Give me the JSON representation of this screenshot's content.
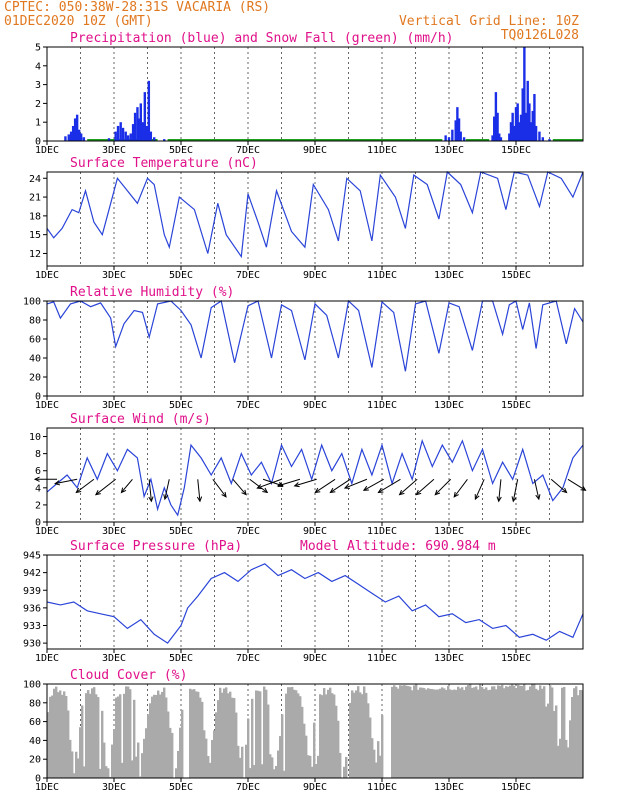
{
  "header": {
    "line1_left": "CPTEC:   050:38W-28:31S   VACARIA (RS)",
    "line2_left": "01DEC2020 10Z (GMT)",
    "line2_right": "Vertical Grid Line: 10Z",
    "line3_right": "TQ0126L028"
  },
  "colors": {
    "header": "#e07820",
    "title": "#e0108a",
    "precip": "#1a2ee8",
    "snow": "#20a020",
    "line": "#2a44d8",
    "cloud": "#aaaaaa"
  },
  "x_axis": {
    "days": 16,
    "tick_labels": [
      "1DEC",
      "3DEC",
      "5DEC",
      "7DEC",
      "9DEC",
      "11DEC",
      "13DEC",
      "15DEC"
    ],
    "tick_days": [
      0,
      2,
      4,
      6,
      8,
      10,
      12,
      14
    ]
  },
  "chart_data": [
    {
      "type": "bar",
      "title": "Precipitation (blue) and Snow Fall (green) (mm/h)",
      "ylim": [
        0,
        5
      ],
      "yticks": [
        0,
        1,
        2,
        3,
        4,
        5
      ],
      "precip_events": [
        [
          0.55,
          0.25
        ],
        [
          0.65,
          0.35
        ],
        [
          0.72,
          0.5
        ],
        [
          0.78,
          0.8
        ],
        [
          0.84,
          1.2
        ],
        [
          0.9,
          1.4
        ],
        [
          0.96,
          0.6
        ],
        [
          1.02,
          0.4
        ],
        [
          1.1,
          0.2
        ],
        [
          1.85,
          0.15
        ],
        [
          2.05,
          0.5
        ],
        [
          2.12,
          0.8
        ],
        [
          2.2,
          1.0
        ],
        [
          2.27,
          0.7
        ],
        [
          2.35,
          0.5
        ],
        [
          2.42,
          0.3
        ],
        [
          2.5,
          0.4
        ],
        [
          2.57,
          0.9
        ],
        [
          2.63,
          1.5
        ],
        [
          2.7,
          1.8
        ],
        [
          2.75,
          1.2
        ],
        [
          2.8,
          2.0
        ],
        [
          2.86,
          1.0
        ],
        [
          2.92,
          2.6
        ],
        [
          2.98,
          0.8
        ],
        [
          3.04,
          3.2
        ],
        [
          3.1,
          0.5
        ],
        [
          3.2,
          0.2
        ],
        [
          3.5,
          0.1
        ],
        [
          11.9,
          0.3
        ],
        [
          12.0,
          0.2
        ],
        [
          12.1,
          0.6
        ],
        [
          12.2,
          1.1
        ],
        [
          12.25,
          1.8
        ],
        [
          12.3,
          1.2
        ],
        [
          12.35,
          0.5
        ],
        [
          12.45,
          0.2
        ],
        [
          13.3,
          0.3
        ],
        [
          13.35,
          1.3
        ],
        [
          13.4,
          2.6
        ],
        [
          13.45,
          1.5
        ],
        [
          13.5,
          0.4
        ],
        [
          13.55,
          0.2
        ],
        [
          13.8,
          0.4
        ],
        [
          13.85,
          1.0
        ],
        [
          13.9,
          1.5
        ],
        [
          13.95,
          0.8
        ],
        [
          14.0,
          1.8
        ],
        [
          14.05,
          2.0
        ],
        [
          14.1,
          1.0
        ],
        [
          14.15,
          1.4
        ],
        [
          14.2,
          2.8
        ],
        [
          14.25,
          5.0
        ],
        [
          14.3,
          1.5
        ],
        [
          14.35,
          3.2
        ],
        [
          14.4,
          2.0
        ],
        [
          14.45,
          1.0
        ],
        [
          14.5,
          1.6
        ],
        [
          14.55,
          2.5
        ],
        [
          14.6,
          0.8
        ],
        [
          14.7,
          0.5
        ],
        [
          14.8,
          0.2
        ],
        [
          15.0,
          0.1
        ]
      ],
      "snow_band": [
        [
          1.2,
          3.3
        ],
        [
          3.6,
          11.8
        ],
        [
          12.5,
          13.2
        ],
        [
          15.1,
          16.0
        ]
      ]
    },
    {
      "type": "line",
      "title": "Surface Temperature (nC)",
      "ylim": [
        10,
        25
      ],
      "yticks": [
        12,
        15,
        18,
        21,
        24
      ],
      "x": [
        0,
        0.2,
        0.45,
        0.75,
        0.95,
        1.15,
        1.4,
        1.65,
        2.1,
        2.4,
        2.7,
        3.0,
        3.2,
        3.5,
        3.65,
        3.95,
        4.4,
        4.8,
        5.1,
        5.35,
        5.8,
        6.0,
        6.3,
        6.55,
        6.85,
        7.3,
        7.7,
        7.95,
        8.4,
        8.7,
        8.95,
        9.35,
        9.7,
        9.95,
        10.4,
        10.7,
        10.95,
        11.35,
        11.7,
        11.95,
        12.35,
        12.7,
        12.95,
        13.45,
        13.7,
        13.95,
        14.35,
        14.7,
        14.95,
        15.35,
        15.7,
        16.0
      ],
      "y": [
        16,
        14.5,
        16,
        19,
        18.5,
        22,
        17,
        15,
        24,
        22,
        20,
        24,
        23,
        15,
        13,
        21,
        19,
        12,
        20,
        15,
        11.5,
        21.5,
        17,
        13,
        22,
        15.5,
        13,
        23,
        19,
        14,
        24,
        22,
        14,
        24.5,
        21,
        16,
        24.5,
        23,
        17.5,
        25,
        23,
        18.5,
        25,
        24,
        19,
        25,
        24.5,
        19.5,
        25,
        24,
        21,
        25
      ]
    },
    {
      "type": "line",
      "title": "Relative Humidity (%)",
      "ylim": [
        0,
        100
      ],
      "yticks": [
        0,
        20,
        40,
        60,
        80,
        100
      ],
      "x": [
        0,
        0.2,
        0.4,
        0.7,
        1.0,
        1.3,
        1.6,
        1.9,
        2.05,
        2.3,
        2.6,
        2.85,
        3.05,
        3.3,
        3.7,
        4.0,
        4.3,
        4.6,
        4.9,
        5.2,
        5.6,
        6.0,
        6.3,
        6.7,
        7.0,
        7.3,
        7.7,
        8.0,
        8.35,
        8.7,
        9.0,
        9.3,
        9.7,
        10.0,
        10.35,
        10.7,
        11.0,
        11.3,
        11.7,
        12.0,
        12.3,
        12.7,
        13.0,
        13.3,
        13.6,
        13.8,
        14.0,
        14.2,
        14.4,
        14.6,
        14.8,
        15.2,
        15.5,
        15.75,
        16.0
      ],
      "y": [
        97,
        99,
        82,
        97,
        100,
        94,
        98,
        82,
        52,
        76,
        90,
        88,
        62,
        97,
        100,
        90,
        75,
        40,
        93,
        100,
        35,
        95,
        100,
        40,
        96,
        90,
        38,
        97,
        85,
        40,
        100,
        90,
        30,
        99,
        88,
        26,
        97,
        100,
        45,
        98,
        94,
        48,
        100,
        100,
        65,
        96,
        100,
        70,
        98,
        50,
        96,
        100,
        55,
        92,
        78
      ]
    },
    {
      "type": "line",
      "title": "Surface Wind (m/s)",
      "ylim": [
        0,
        11
      ],
      "yticks": [
        0,
        2,
        4,
        6,
        8,
        10
      ],
      "x": [
        0,
        0.3,
        0.6,
        0.9,
        1.2,
        1.5,
        1.8,
        2.1,
        2.4,
        2.7,
        2.9,
        3.1,
        3.3,
        3.5,
        3.7,
        3.9,
        4.1,
        4.3,
        4.6,
        4.9,
        5.2,
        5.5,
        5.8,
        6.1,
        6.4,
        6.7,
        7.0,
        7.3,
        7.6,
        7.9,
        8.2,
        8.5,
        8.8,
        9.1,
        9.4,
        9.7,
        10.0,
        10.3,
        10.6,
        10.9,
        11.2,
        11.5,
        11.8,
        12.1,
        12.4,
        12.7,
        13.0,
        13.3,
        13.6,
        13.9,
        14.2,
        14.5,
        14.8,
        15.1,
        15.4,
        15.7,
        16.0
      ],
      "y": [
        3.5,
        4.5,
        5.5,
        4.0,
        7.5,
        5.0,
        8.0,
        6.0,
        8.5,
        7.5,
        3.0,
        5.0,
        1.5,
        4.0,
        2.0,
        0.8,
        4.0,
        9.0,
        7.5,
        5.5,
        7.5,
        4.5,
        8.0,
        5.5,
        7.0,
        4.5,
        9.0,
        6.5,
        8.5,
        5.0,
        9.0,
        6.0,
        8.0,
        4.5,
        8.5,
        5.5,
        9.0,
        4.5,
        8.0,
        5.0,
        9.5,
        6.5,
        9.0,
        7.0,
        9.5,
        6.0,
        8.5,
        4.5,
        7.0,
        5.0,
        8.5,
        4.5,
        5.5,
        2.5,
        4.0,
        7.5,
        9.0
      ]
    },
    {
      "type": "line",
      "title": "Surface Pressure (hPa)",
      "subtitle": "Model Altitude: 690.984 m",
      "ylim": [
        929,
        945
      ],
      "yticks": [
        930,
        933,
        936,
        939,
        942,
        945
      ],
      "x": [
        0,
        0.4,
        0.8,
        1.2,
        1.6,
        2.0,
        2.4,
        2.8,
        3.2,
        3.6,
        4.0,
        4.2,
        4.5,
        4.9,
        5.3,
        5.7,
        6.1,
        6.5,
        6.9,
        7.3,
        7.7,
        8.1,
        8.5,
        8.9,
        9.3,
        9.7,
        10.1,
        10.5,
        10.9,
        11.3,
        11.7,
        12.1,
        12.5,
        12.9,
        13.3,
        13.7,
        14.1,
        14.5,
        14.9,
        15.3,
        15.7,
        16.0
      ],
      "y": [
        937,
        936.5,
        937,
        935.5,
        935,
        934.5,
        932.5,
        934,
        931.5,
        930,
        933,
        936,
        938,
        941,
        942,
        940.5,
        942.5,
        943.5,
        941.5,
        942.5,
        941,
        942,
        940.5,
        941.5,
        940,
        938.5,
        937,
        938,
        935.5,
        936.5,
        934.5,
        935,
        933.5,
        934,
        932.5,
        933,
        931,
        931.5,
        930.5,
        932,
        931,
        935
      ]
    },
    {
      "type": "area",
      "title": "Cloud Cover (%)",
      "ylim": [
        0,
        100
      ],
      "yticks": [
        0,
        20,
        40,
        60,
        80,
        100
      ],
      "clear_windows": [
        [
          4.05,
          4.2
        ],
        [
          10.0,
          10.25
        ]
      ]
    }
  ],
  "wind_barbs": {
    "x": [
      0.3,
      0.9,
      1.4,
      2.05,
      2.55,
      3.05,
      3.65,
      4.5,
      4.95,
      5.55,
      6.05,
      6.45,
      7.0,
      7.55,
      8.05,
      8.6,
      9.05,
      9.55,
      10.05,
      10.55,
      11.05,
      11.55,
      12.05,
      12.55,
      13.05,
      13.55,
      14.05,
      14.55,
      15.05,
      15.55
    ],
    "dx": [
      -1.0,
      -1.0,
      -0.8,
      -0.9,
      -0.5,
      0.1,
      -0.2,
      0.1,
      0.6,
      0.6,
      0.8,
      0.9,
      -1.1,
      -1.0,
      -1.0,
      -0.9,
      -0.9,
      -1.0,
      -0.9,
      -1.0,
      -0.8,
      -0.8,
      -0.7,
      -0.6,
      -0.4,
      -0.1,
      -0.2,
      0.2,
      0.7,
      0.8
    ],
    "dy": [
      0.0,
      -0.2,
      -0.6,
      -0.7,
      -0.6,
      -1.0,
      -0.9,
      -1.0,
      -0.8,
      -0.7,
      -0.6,
      -0.3,
      -0.4,
      -0.3,
      -0.3,
      -0.6,
      -0.6,
      -0.4,
      -0.5,
      -0.6,
      -0.7,
      -0.7,
      -0.7,
      -0.8,
      -0.9,
      -1.0,
      -1.0,
      -0.9,
      -0.6,
      -0.5
    ]
  }
}
